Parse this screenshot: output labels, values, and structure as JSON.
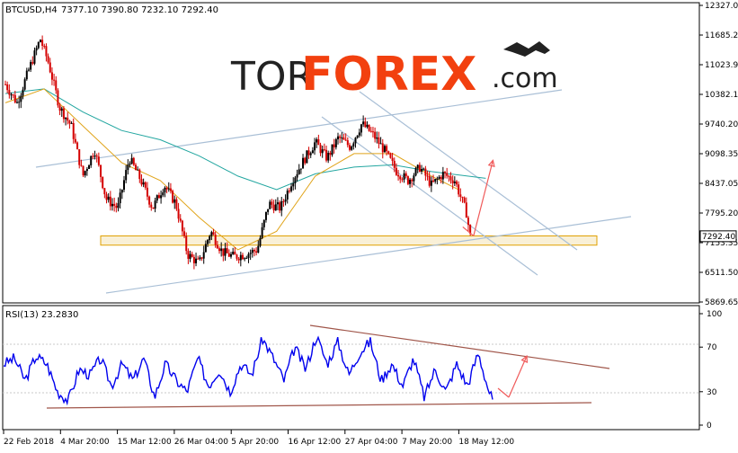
{
  "chart_data": [
    {
      "type": "candlestick",
      "symbol_label": "BTCUSD,H4",
      "ohlc_label": "7377.10 7390.80 7232.10 7292.40",
      "current_price_label": "7292.40",
      "y_ticks": [
        "12327.05",
        "11685.25",
        "11023.95",
        "10382.15",
        "9740.20",
        "9098.35",
        "8437.05",
        "7795.20",
        "7153.35",
        "6511.50",
        "5869.65"
      ],
      "ylim": [
        5869.65,
        12327.05
      ],
      "x_ticks": [
        "22 Feb 2018",
        "4 Mar 20:00",
        "15 Mar 12:00",
        "26 Mar 04:00",
        "5 Apr 20:00",
        "16 Apr 12:00",
        "27 Apr 04:00",
        "7 May 20:00",
        "18 May 12:00"
      ],
      "price_path": [
        [
          0,
          10600
        ],
        [
          3,
          10200
        ],
        [
          6,
          10900
        ],
        [
          9,
          11600
        ],
        [
          11,
          11100
        ],
        [
          14,
          10100
        ],
        [
          17,
          9700
        ],
        [
          20,
          8600
        ],
        [
          23,
          9200
        ],
        [
          26,
          8100
        ],
        [
          29,
          7900
        ],
        [
          32,
          9000
        ],
        [
          35,
          8500
        ],
        [
          38,
          7900
        ],
        [
          41,
          8400
        ],
        [
          44,
          8000
        ],
        [
          47,
          6900
        ],
        [
          50,
          6700
        ],
        [
          53,
          7400
        ],
        [
          56,
          6950
        ],
        [
          59,
          6850
        ],
        [
          62,
          6900
        ],
        [
          65,
          7000
        ],
        [
          68,
          8000
        ],
        [
          71,
          7900
        ],
        [
          74,
          8500
        ],
        [
          77,
          8950
        ],
        [
          80,
          9350
        ],
        [
          83,
          9000
        ],
        [
          86,
          9450
        ],
        [
          89,
          9250
        ],
        [
          92,
          9750
        ],
        [
          95,
          9500
        ],
        [
          98,
          9150
        ],
        [
          101,
          8700
        ],
        [
          104,
          8500
        ],
        [
          107,
          8800
        ],
        [
          110,
          8400
        ],
        [
          113,
          8650
        ],
        [
          116,
          8500
        ],
        [
          119,
          7800
        ],
        [
          120,
          7292
        ]
      ],
      "ma_fast": [
        [
          0,
          10200
        ],
        [
          10,
          10500
        ],
        [
          20,
          9700
        ],
        [
          30,
          8900
        ],
        [
          40,
          8500
        ],
        [
          50,
          7700
        ],
        [
          60,
          7000
        ],
        [
          70,
          7400
        ],
        [
          80,
          8600
        ],
        [
          90,
          9100
        ],
        [
          100,
          9100
        ],
        [
          110,
          8600
        ],
        [
          117,
          8300
        ]
      ],
      "ma_slow": [
        [
          0,
          10400
        ],
        [
          10,
          10500
        ],
        [
          20,
          10000
        ],
        [
          30,
          9600
        ],
        [
          40,
          9400
        ],
        [
          50,
          9050
        ],
        [
          60,
          8600
        ],
        [
          70,
          8300
        ],
        [
          80,
          8650
        ],
        [
          90,
          8800
        ],
        [
          100,
          8850
        ],
        [
          110,
          8700
        ],
        [
          124,
          8550
        ]
      ],
      "support_zone": [
        7100,
        7300
      ],
      "arrow_start": [
        119,
        7300
      ],
      "arrow_end": [
        124,
        8950
      ]
    },
    {
      "type": "line",
      "indicator_label": "RSI(13) 23.2830",
      "y_ticks": [
        "100",
        "70",
        "30",
        "0"
      ],
      "ylim": [
        0,
        100
      ],
      "rsi_path": [
        [
          0,
          55
        ],
        [
          3,
          60
        ],
        [
          6,
          40
        ],
        [
          9,
          62
        ],
        [
          12,
          55
        ],
        [
          15,
          30
        ],
        [
          18,
          22
        ],
        [
          21,
          50
        ],
        [
          24,
          45
        ],
        [
          27,
          60
        ],
        [
          30,
          35
        ],
        [
          33,
          55
        ],
        [
          36,
          40
        ],
        [
          39,
          60
        ],
        [
          42,
          25
        ],
        [
          45,
          55
        ],
        [
          48,
          40
        ],
        [
          51,
          30
        ],
        [
          54,
          60
        ],
        [
          57,
          35
        ],
        [
          60,
          50
        ],
        [
          63,
          30
        ],
        [
          66,
          55
        ],
        [
          69,
          45
        ],
        [
          72,
          78
        ],
        [
          75,
          60
        ],
        [
          78,
          40
        ],
        [
          81,
          70
        ],
        [
          84,
          50
        ],
        [
          87,
          80
        ],
        [
          90,
          55
        ],
        [
          93,
          75
        ],
        [
          96,
          45
        ],
        [
          99,
          65
        ],
        [
          102,
          75
        ],
        [
          105,
          40
        ],
        [
          108,
          55
        ],
        [
          111,
          35
        ],
        [
          114,
          60
        ],
        [
          117,
          25
        ],
        [
          120,
          50
        ],
        [
          123,
          30
        ],
        [
          126,
          55
        ],
        [
          129,
          35
        ],
        [
          132,
          65
        ],
        [
          135,
          30
        ],
        [
          136,
          23
        ]
      ],
      "arrow_start": [
        136,
        25
      ],
      "arrow_end": [
        141,
        62
      ]
    }
  ]
}
